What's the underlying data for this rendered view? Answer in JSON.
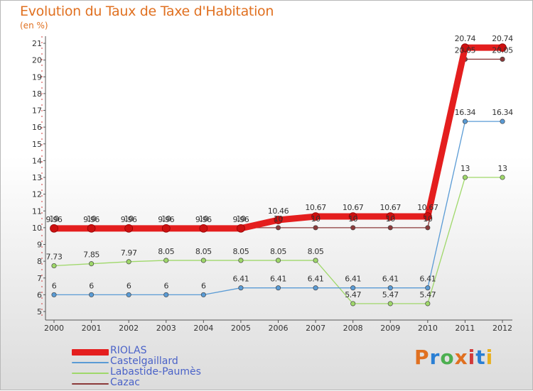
{
  "title": "Evolution du Taux de Taxe d'Habitation",
  "unit_label": "(en %)",
  "logo": {
    "text": "Proxiti",
    "colors": [
      "#e07020",
      "#2a7fd4",
      "#4caf50",
      "#e07020",
      "#d23a3a",
      "#2a7fd4",
      "#e8b020"
    ]
  },
  "chart_data": {
    "type": "line",
    "title": "Evolution du Taux de Taxe d'Habitation",
    "ylabel": "(en %)",
    "xlabel": "",
    "categories": [
      "2000",
      "2001",
      "2002",
      "2003",
      "2004",
      "2005",
      "2006",
      "2007",
      "2008",
      "2009",
      "2010",
      "2011",
      "2012"
    ],
    "ylim": [
      5,
      21
    ],
    "yticks": [
      5,
      6,
      7,
      8,
      9,
      10,
      11,
      12,
      13,
      14,
      15,
      16,
      17,
      18,
      19,
      20,
      21
    ],
    "grid": false,
    "legend_position": "bottom-left",
    "series": [
      {
        "name": "RIOLAS",
        "color": "#e41e1e",
        "width": 9,
        "values": [
          9.96,
          9.96,
          9.96,
          9.96,
          9.96,
          9.96,
          10.46,
          10.67,
          10.67,
          10.67,
          10.67,
          20.74,
          20.74
        ],
        "labels": [
          "9.96",
          "9.96",
          "9.96",
          "9.96",
          "9.96",
          "9.96",
          "10.46",
          "10.67",
          "10.67",
          "10.67",
          "10.67",
          "20.74",
          "20.74"
        ]
      },
      {
        "name": "Castelgaillard",
        "color": "#5a9bd5",
        "width": 1.3,
        "values": [
          6,
          6,
          6,
          6,
          6,
          6.41,
          6.41,
          6.41,
          6.41,
          6.41,
          6.41,
          16.34,
          16.34
        ],
        "labels": [
          "6",
          "6",
          "6",
          "6",
          "6",
          "6.41",
          "6.41",
          "6.41",
          "6.41",
          "6.41",
          "6.41",
          "16.34",
          "16.34"
        ]
      },
      {
        "name": "Labastide-Paumès",
        "color": "#9fd86a",
        "width": 1.3,
        "values": [
          7.73,
          7.85,
          7.97,
          8.05,
          8.05,
          8.05,
          8.05,
          8.05,
          5.47,
          5.47,
          5.47,
          13,
          13
        ],
        "labels": [
          "7.73",
          "7.85",
          "7.97",
          "8.05",
          "8.05",
          "8.05",
          "8.05",
          "8.05",
          "5.47",
          "5.47",
          "5.47",
          "13",
          "13"
        ]
      },
      {
        "name": "Cazac",
        "color": "#8b3a3a",
        "width": 1.3,
        "values": [
          10,
          10,
          10,
          10,
          10,
          10,
          10,
          10,
          10,
          10,
          10,
          20.05,
          20.05
        ],
        "labels": [
          "10",
          "10",
          "10",
          "10",
          "10",
          "10",
          "10",
          "10",
          "10",
          "10",
          "10",
          "20.05",
          "20.05"
        ]
      }
    ]
  }
}
